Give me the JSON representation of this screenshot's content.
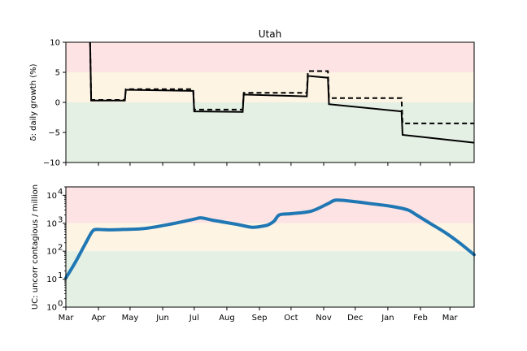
{
  "chart_data": [
    {
      "type": "line",
      "title": "Utah",
      "ylabel": "δ: daily growth (%)",
      "ylim": [
        -10,
        10
      ],
      "yticks": [
        -10,
        -5,
        0,
        5,
        10
      ],
      "ytick_labels": [
        "−10",
        "−5",
        "0",
        "5",
        "10"
      ],
      "xlim": [
        "2020-03-01",
        "2021-03-24"
      ],
      "bands": [
        {
          "from": 5,
          "to": 10,
          "color": "#fde3e3"
        },
        {
          "from": 0,
          "to": 5,
          "color": "#fdf4e3"
        },
        {
          "from": -10,
          "to": 0,
          "color": "#e4f0e4"
        }
      ],
      "series": [
        {
          "style": "solid",
          "color": "#000000",
          "points": [
            [
              "2020-03-24",
              10
            ],
            [
              "2020-03-25",
              0.3
            ],
            [
              "2020-04-26",
              0.3
            ],
            [
              "2020-04-27",
              2.1
            ],
            [
              "2020-06-30",
              1.9
            ],
            [
              "2020-07-01",
              -1.5
            ],
            [
              "2020-08-16",
              -1.6
            ],
            [
              "2020-08-17",
              1.3
            ],
            [
              "2020-10-16",
              1.0
            ],
            [
              "2020-10-17",
              4.4
            ],
            [
              "2020-11-05",
              4.1
            ],
            [
              "2020-11-06",
              -0.3
            ],
            [
              "2021-01-14",
              -1.5
            ],
            [
              "2021-01-15",
              -5.4
            ],
            [
              "2021-03-24",
              -6.7
            ]
          ]
        },
        {
          "style": "dashed",
          "color": "#000000",
          "points": [
            [
              "2020-03-24",
              10
            ],
            [
              "2020-03-25",
              0.4
            ],
            [
              "2020-04-26",
              0.4
            ],
            [
              "2020-04-27",
              2.2
            ],
            [
              "2020-06-30",
              2.2
            ],
            [
              "2020-07-01",
              -1.2
            ],
            [
              "2020-08-16",
              -1.2
            ],
            [
              "2020-08-17",
              1.6
            ],
            [
              "2020-10-16",
              1.6
            ],
            [
              "2020-10-17",
              5.2
            ],
            [
              "2020-11-05",
              5.2
            ],
            [
              "2020-11-06",
              0.7
            ],
            [
              "2021-01-14",
              0.7
            ],
            [
              "2021-01-15",
              -3.5
            ],
            [
              "2021-03-24",
              -3.5
            ]
          ]
        }
      ]
    },
    {
      "type": "line",
      "ylabel": "UC: uncorr contagious / million",
      "yscale": "log",
      "ylim": [
        1,
        20000
      ],
      "yticks": [
        1,
        10,
        100,
        1000,
        10000
      ],
      "ytick_labels": [
        {
          "base": "10",
          "exp": "0"
        },
        {
          "base": "10",
          "exp": "1"
        },
        {
          "base": "10",
          "exp": "2"
        },
        {
          "base": "10",
          "exp": "3"
        },
        {
          "base": "10",
          "exp": "4"
        }
      ],
      "xlim": [
        "2020-03-01",
        "2021-03-24"
      ],
      "xticks": [
        "2020-03-01",
        "2020-04-01",
        "2020-05-01",
        "2020-06-01",
        "2020-07-01",
        "2020-08-01",
        "2020-09-01",
        "2020-10-01",
        "2020-11-01",
        "2020-12-01",
        "2021-01-01",
        "2021-02-01",
        "2021-03-01"
      ],
      "xtick_labels": [
        "Mar",
        "Apr",
        "May",
        "Jun",
        "Jul",
        "Aug",
        "Sep",
        "Oct",
        "Nov",
        "Dec",
        "Jan",
        "Feb",
        "Mar"
      ],
      "bands": [
        {
          "from": 1000,
          "to": 20000,
          "color": "#fde3e3"
        },
        {
          "from": 100,
          "to": 1000,
          "color": "#fdf4e3"
        },
        {
          "from": 1,
          "to": 100,
          "color": "#e4f0e4"
        }
      ],
      "series": [
        {
          "style": "solid",
          "color": "#1f77b4",
          "points": [
            [
              "2020-03-01",
              11
            ],
            [
              "2020-03-10",
              40
            ],
            [
              "2020-03-20",
              200
            ],
            [
              "2020-03-26",
              500
            ],
            [
              "2020-03-30",
              600
            ],
            [
              "2020-04-10",
              580
            ],
            [
              "2020-04-25",
              600
            ],
            [
              "2020-05-15",
              650
            ],
            [
              "2020-06-10",
              950
            ],
            [
              "2020-07-01",
              1400
            ],
            [
              "2020-07-08",
              1550
            ],
            [
              "2020-07-20",
              1250
            ],
            [
              "2020-08-10",
              920
            ],
            [
              "2020-08-25",
              720
            ],
            [
              "2020-09-05",
              800
            ],
            [
              "2020-09-10",
              900
            ],
            [
              "2020-09-15",
              1200
            ],
            [
              "2020-09-20",
              2000
            ],
            [
              "2020-10-01",
              2200
            ],
            [
              "2020-10-20",
              2700
            ],
            [
              "2020-11-05",
              5000
            ],
            [
              "2020-11-13",
              6700
            ],
            [
              "2020-12-01",
              5900
            ],
            [
              "2020-12-20",
              4800
            ],
            [
              "2021-01-05",
              4000
            ],
            [
              "2021-01-20",
              3000
            ],
            [
              "2021-01-28",
              2000
            ],
            [
              "2021-02-10",
              1000
            ],
            [
              "2021-02-25",
              450
            ],
            [
              "2021-03-10",
              200
            ],
            [
              "2021-03-24",
              75
            ]
          ]
        }
      ]
    }
  ]
}
